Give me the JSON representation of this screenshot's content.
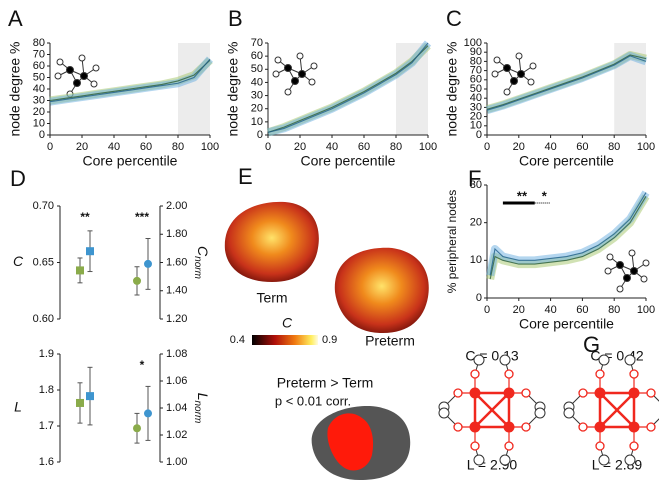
{
  "chart_data": [
    {
      "type": "line",
      "title": "A",
      "xlabel": "Core percentile",
      "ylabel": "node degree %",
      "x": [
        0,
        10,
        20,
        30,
        40,
        50,
        60,
        70,
        80,
        90,
        100
      ],
      "series": [
        {
          "color": "#a4c66a",
          "values": [
            30,
            32,
            34,
            36,
            38,
            40,
            42,
            44,
            47,
            52,
            65
          ]
        },
        {
          "color": "#6aaee0",
          "values": [
            29,
            31,
            33,
            35,
            37,
            39,
            41,
            43,
            45,
            50,
            66
          ]
        }
      ],
      "xlim": [
        0,
        100
      ],
      "xticks": [
        0,
        20,
        40,
        60,
        80,
        100
      ],
      "ylim": [
        0,
        80
      ],
      "yticks": [
        0,
        10,
        20,
        30,
        40,
        50,
        60,
        70,
        80
      ],
      "shade": [
        80,
        100
      ]
    },
    {
      "type": "line",
      "title": "B",
      "xlabel": "Core percentile",
      "ylabel": "node degree %",
      "x": [
        0,
        10,
        20,
        30,
        40,
        50,
        60,
        70,
        80,
        90,
        100
      ],
      "series": [
        {
          "color": "#a4c66a",
          "values": [
            2,
            6,
            11,
            16,
            21,
            27,
            33,
            40,
            47,
            56,
            68
          ]
        },
        {
          "color": "#6aaee0",
          "values": [
            2,
            5,
            10,
            15,
            20,
            26,
            32,
            39,
            46,
            55,
            70
          ]
        }
      ],
      "xlim": [
        0,
        100
      ],
      "xticks": [
        0,
        20,
        40,
        60,
        80,
        100
      ],
      "ylim": [
        0,
        70
      ],
      "yticks": [
        0,
        10,
        20,
        30,
        40,
        50,
        60,
        70
      ],
      "shade": [
        80,
        100
      ]
    },
    {
      "type": "line",
      "title": "C",
      "xlabel": "Core percentile",
      "ylabel": "node degree %",
      "x": [
        0,
        10,
        20,
        30,
        40,
        50,
        60,
        70,
        80,
        90,
        100
      ],
      "series": [
        {
          "color": "#a4c66a",
          "values": [
            28,
            33,
            39,
            45,
            51,
            57,
            63,
            70,
            77,
            87,
            83
          ]
        },
        {
          "color": "#6aaee0",
          "values": [
            27,
            32,
            38,
            44,
            50,
            56,
            62,
            69,
            76,
            86,
            80
          ]
        }
      ],
      "xlim": [
        0,
        100
      ],
      "xticks": [
        0,
        20,
        40,
        60,
        80,
        100
      ],
      "ylim": [
        0,
        100
      ],
      "yticks": [
        0,
        10,
        20,
        30,
        40,
        50,
        60,
        70,
        80,
        90,
        100
      ],
      "shade": [
        80,
        100
      ]
    },
    {
      "type": "line",
      "title": "F",
      "xlabel": "Core percentile",
      "ylabel": "% peripheral nodes",
      "x": [
        2,
        5,
        10,
        20,
        30,
        40,
        50,
        60,
        70,
        80,
        90,
        100
      ],
      "series": [
        {
          "color": "#a4c66a",
          "values": [
            5,
            11,
            10,
            9,
            9,
            9.5,
            10,
            11,
            13,
            16,
            20,
            27
          ]
        },
        {
          "color": "#6aaee0",
          "values": [
            6,
            13,
            11,
            10,
            10,
            10.5,
            11,
            12,
            14,
            17,
            21,
            28
          ]
        }
      ],
      "xlim": [
        0,
        100
      ],
      "xticks": [
        0,
        20,
        40,
        60,
        80,
        100
      ],
      "ylim": [
        0,
        30
      ],
      "yticks": [
        0,
        10,
        20,
        30
      ],
      "annotations": [
        "**",
        "*"
      ]
    },
    {
      "type": "errorbar",
      "title": "D",
      "ylabel": "C",
      "y2label": "C",
      "y2label_sub": "norm",
      "ylim": [
        0.6,
        0.7
      ],
      "yticks": [
        {
          "value": 0.6,
          "label": "0.60"
        },
        {
          "value": 0.65,
          "label": "0.65"
        },
        {
          "value": 0.7,
          "label": "0.70"
        }
      ],
      "y2lim": [
        1.2,
        2.0
      ],
      "y2ticks": [
        {
          "value": 1.2,
          "label": "1.20"
        },
        {
          "value": 1.4,
          "label": "1.40"
        },
        {
          "value": 1.6,
          "label": "1.60"
        },
        {
          "value": 1.8,
          "label": "1.80"
        },
        {
          "value": 2.0,
          "label": "2.00"
        }
      ],
      "series": [
        {
          "color": "#8aab4a",
          "marker": "square",
          "values": [
            0.643
          ],
          "errors": [
            0.011
          ]
        },
        {
          "color": "#3e95cf",
          "marker": "square",
          "values": [
            0.66
          ],
          "errors": [
            0.018
          ]
        },
        {
          "color": "#8aab4a",
          "marker": "circle",
          "axis": "y2",
          "values": [
            1.47
          ],
          "errors": [
            0.1
          ]
        },
        {
          "color": "#3e95cf",
          "marker": "circle",
          "axis": "y2",
          "values": [
            1.59
          ],
          "errors": [
            0.18
          ]
        }
      ],
      "annotations": [
        "**",
        "***"
      ]
    },
    {
      "type": "errorbar",
      "ylabel": "L",
      "y2label": "L",
      "y2label_sub": "norm",
      "ylim": [
        1.6,
        1.9
      ],
      "yticks": [
        1.6,
        1.7,
        1.8,
        1.9
      ],
      "y2lim": [
        1.0,
        1.08
      ],
      "y2ticks": [
        {
          "value": 1.0,
          "label": "1.00"
        },
        {
          "value": 1.02,
          "label": "1.02"
        },
        {
          "value": 1.04,
          "label": "1.04"
        },
        {
          "value": 1.06,
          "label": "1.06"
        },
        {
          "value": 1.08,
          "label": "1.08"
        }
      ],
      "series": [
        {
          "color": "#8aab4a",
          "marker": "square",
          "values": [
            1.764
          ],
          "errors": [
            0.056
          ]
        },
        {
          "color": "#3e95cf",
          "marker": "square",
          "values": [
            1.783
          ],
          "errors": [
            0.08
          ]
        },
        {
          "color": "#8aab4a",
          "marker": "circle",
          "axis": "y2",
          "values": [
            1.025
          ],
          "errors": [
            0.011
          ]
        },
        {
          "color": "#3e95cf",
          "marker": "circle",
          "axis": "y2",
          "values": [
            1.036
          ],
          "errors": [
            0.02
          ]
        }
      ],
      "annotations": [
        "*"
      ]
    }
  ],
  "panel_e": {
    "label": "E",
    "term": "Term",
    "preterm": "Preterm",
    "colorbar_label": "C",
    "colorbar_min": 0.4,
    "colorbar_max": 0.9,
    "contrast": "Preterm > Term",
    "threshold": "p < 0.01 corr."
  },
  "panel_g": {
    "label": "G",
    "networks": [
      {
        "C": "C = 0.13",
        "L": "L = 2.90"
      },
      {
        "C": "C = 0.42",
        "L": "L = 2.89"
      }
    ]
  }
}
